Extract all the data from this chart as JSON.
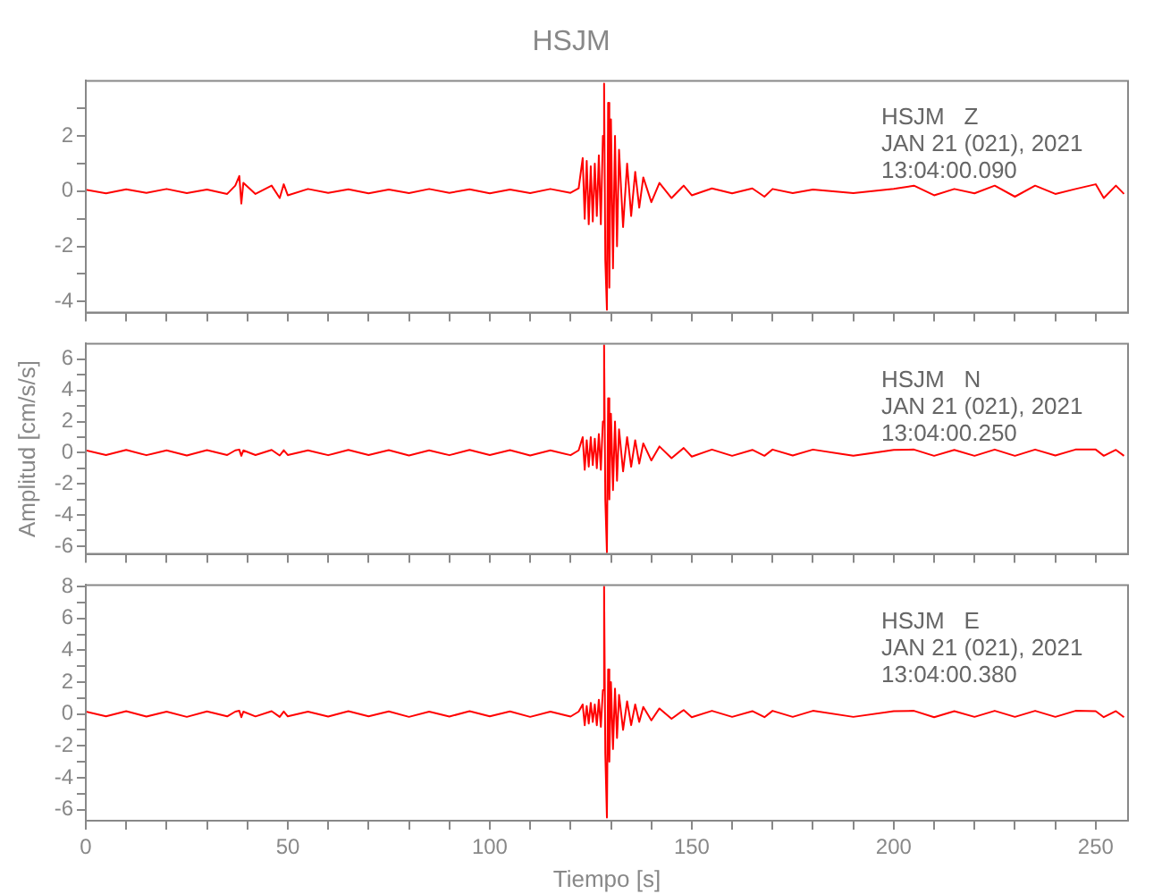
{
  "chart_data": [
    {
      "type": "line",
      "title": "HSJM",
      "annotations": [
        "HSJM   Z",
        "JAN 21 (021), 2021",
        "13:04:00.090"
      ],
      "x": [
        0,
        5,
        10,
        15,
        20,
        25,
        30,
        35,
        37,
        38,
        38.5,
        39,
        42,
        46,
        48,
        49,
        50,
        55,
        60,
        65,
        70,
        75,
        80,
        85,
        90,
        95,
        100,
        105,
        110,
        115,
        120,
        122,
        123,
        123.5,
        124,
        124.5,
        125,
        125.5,
        126,
        126.5,
        127,
        127.5,
        128,
        128.3,
        128.6,
        129,
        129.3,
        129.6,
        130,
        130.5,
        131,
        131.5,
        132,
        133,
        134,
        135,
        136,
        137,
        138,
        140,
        142,
        145,
        148,
        150,
        155,
        160,
        165,
        168,
        170,
        175,
        180,
        190,
        200,
        205,
        210,
        215,
        220,
        225,
        230,
        235,
        240,
        245,
        250,
        252,
        255,
        257
      ],
      "series": [
        {
          "color": "#ff0000",
          "values": [
            0.05,
            -0.08,
            0.07,
            -0.06,
            0.08,
            -0.07,
            0.06,
            -0.1,
            0.2,
            0.55,
            -0.45,
            0.3,
            -0.1,
            0.2,
            -0.25,
            0.25,
            -0.15,
            0.08,
            -0.06,
            0.07,
            -0.08,
            0.06,
            -0.07,
            0.08,
            -0.06,
            0.07,
            -0.08,
            0.06,
            -0.07,
            0.08,
            -0.06,
            0.1,
            1.2,
            -1.0,
            1.1,
            -1.2,
            0.9,
            -1.1,
            1.0,
            -0.9,
            1.3,
            -1.2,
            2.0,
            3.9,
            -2.5,
            -4.3,
            3.2,
            -3.5,
            2.6,
            -2.8,
            2.0,
            -2.0,
            1.5,
            -1.3,
            1.0,
            -0.9,
            0.7,
            -0.6,
            0.5,
            -0.4,
            0.3,
            -0.25,
            0.2,
            -0.15,
            0.1,
            -0.08,
            0.1,
            -0.2,
            0.08,
            -0.07,
            0.06,
            -0.07,
            0.08,
            0.2,
            -0.15,
            0.08,
            -0.08,
            0.2,
            -0.2,
            0.2,
            -0.1,
            0.08,
            0.25,
            -0.25,
            0.2,
            -0.1
          ]
        }
      ],
      "xlim": [
        0,
        258
      ],
      "xticks": [
        0,
        {
          "value": 10,
          "label": null
        },
        {
          "value": 20,
          "label": null
        },
        {
          "value": 30,
          "label": null
        },
        {
          "value": 40,
          "label": null
        },
        50,
        {
          "value": 60,
          "label": null
        },
        {
          "value": 70,
          "label": null
        },
        {
          "value": 80,
          "label": null
        },
        {
          "value": 90,
          "label": null
        },
        100,
        {
          "value": 110,
          "label": null
        },
        {
          "value": 120,
          "label": null
        },
        {
          "value": 130,
          "label": null
        },
        {
          "value": 140,
          "label": null
        },
        150,
        {
          "value": 160,
          "label": null
        },
        {
          "value": 170,
          "label": null
        },
        {
          "value": 180,
          "label": null
        },
        {
          "value": 190,
          "label": null
        },
        200,
        {
          "value": 210,
          "label": null
        },
        {
          "value": 220,
          "label": null
        },
        {
          "value": 230,
          "label": null
        },
        {
          "value": 240,
          "label": null
        },
        250
      ],
      "ylim": [
        -4.4,
        4
      ],
      "yticks": [
        -4,
        {
          "value": -3,
          "label": null
        },
        -2,
        {
          "value": -1,
          "label": null
        },
        0,
        {
          "value": 1,
          "label": null
        },
        2,
        {
          "value": 3,
          "label": null
        }
      ],
      "tick_labels": "y",
      "grid": false,
      "legend": false,
      "marker": "none",
      "line_style": "solid"
    },
    {
      "type": "line",
      "ylabel": "Amplitud [cm/s/s]",
      "annotations": [
        "HSJM   N",
        "JAN 21 (021), 2021",
        "13:04:00.250"
      ],
      "x": [
        0,
        5,
        10,
        15,
        20,
        25,
        30,
        35,
        37,
        38,
        38.5,
        39,
        42,
        46,
        48,
        49,
        50,
        55,
        60,
        65,
        70,
        75,
        80,
        85,
        90,
        95,
        100,
        105,
        110,
        115,
        120,
        122,
        123,
        123.5,
        124,
        124.5,
        125,
        125.5,
        126,
        126.5,
        127,
        127.5,
        128,
        128.3,
        128.6,
        129,
        129.3,
        129.6,
        130,
        130.5,
        131,
        131.5,
        132,
        133,
        134,
        135,
        136,
        137,
        138,
        140,
        142,
        145,
        148,
        150,
        155,
        160,
        165,
        168,
        170,
        175,
        180,
        190,
        200,
        205,
        210,
        215,
        220,
        225,
        230,
        235,
        240,
        245,
        250,
        252,
        255,
        257
      ],
      "series": [
        {
          "color": "#ff0000",
          "values": [
            0.15,
            -0.15,
            0.18,
            -0.16,
            0.15,
            -0.18,
            0.16,
            -0.15,
            0.15,
            0.2,
            -0.2,
            0.15,
            -0.15,
            0.18,
            -0.18,
            0.16,
            -0.15,
            0.15,
            -0.16,
            0.18,
            -0.15,
            0.16,
            -0.18,
            0.15,
            -0.16,
            0.18,
            -0.15,
            0.16,
            -0.18,
            0.15,
            -0.16,
            0.15,
            1.0,
            -1.1,
            0.8,
            -0.9,
            1.0,
            -0.8,
            0.9,
            -1.0,
            1.2,
            -1.1,
            2.0,
            6.9,
            -3.0,
            -6.4,
            3.5,
            -3.0,
            2.5,
            -2.4,
            2.0,
            -1.8,
            1.5,
            -1.2,
            1.0,
            -0.9,
            0.8,
            -0.7,
            0.6,
            -0.5,
            0.4,
            -0.35,
            0.3,
            -0.25,
            0.2,
            -0.2,
            0.18,
            -0.2,
            0.2,
            -0.18,
            0.2,
            -0.2,
            0.18,
            0.2,
            -0.2,
            0.18,
            -0.2,
            0.2,
            -0.2,
            0.2,
            -0.18,
            0.2,
            0.2,
            -0.2,
            0.18,
            -0.2
          ]
        }
      ],
      "xlim": [
        0,
        258
      ],
      "xticks": [
        0,
        {
          "value": 10,
          "label": null
        },
        {
          "value": 20,
          "label": null
        },
        {
          "value": 30,
          "label": null
        },
        {
          "value": 40,
          "label": null
        },
        50,
        {
          "value": 60,
          "label": null
        },
        {
          "value": 70,
          "label": null
        },
        {
          "value": 80,
          "label": null
        },
        {
          "value": 90,
          "label": null
        },
        100,
        {
          "value": 110,
          "label": null
        },
        {
          "value": 120,
          "label": null
        },
        {
          "value": 130,
          "label": null
        },
        {
          "value": 140,
          "label": null
        },
        150,
        {
          "value": 160,
          "label": null
        },
        {
          "value": 170,
          "label": null
        },
        {
          "value": 180,
          "label": null
        },
        {
          "value": 190,
          "label": null
        },
        200,
        {
          "value": 210,
          "label": null
        },
        {
          "value": 220,
          "label": null
        },
        {
          "value": 230,
          "label": null
        },
        {
          "value": 240,
          "label": null
        },
        250
      ],
      "ylim": [
        -6.5,
        7
      ],
      "yticks": [
        -6,
        {
          "value": -5,
          "label": null
        },
        -4,
        {
          "value": -3,
          "label": null
        },
        -2,
        {
          "value": -1,
          "label": null
        },
        0,
        {
          "value": 1,
          "label": null
        },
        2,
        {
          "value": 3,
          "label": null
        },
        4,
        {
          "value": 5,
          "label": null
        },
        6
      ],
      "tick_labels": "y",
      "grid": false,
      "legend": false,
      "marker": "none",
      "line_style": "solid"
    },
    {
      "type": "line",
      "xlabel": "Tiempo [s]",
      "annotations": [
        "HSJM   E",
        "JAN 21 (021), 2021",
        "13:04:00.380"
      ],
      "x": [
        0,
        5,
        10,
        15,
        20,
        25,
        30,
        35,
        37,
        38,
        38.5,
        39,
        42,
        46,
        48,
        49,
        50,
        55,
        60,
        65,
        70,
        75,
        80,
        85,
        90,
        95,
        100,
        105,
        110,
        115,
        120,
        122,
        123,
        123.5,
        124,
        124.5,
        125,
        125.5,
        126,
        126.5,
        127,
        127.5,
        128,
        128.3,
        128.6,
        129,
        129.3,
        129.6,
        130,
        130.5,
        131,
        131.5,
        132,
        133,
        134,
        135,
        136,
        137,
        138,
        140,
        142,
        145,
        148,
        150,
        155,
        160,
        165,
        168,
        170,
        175,
        180,
        190,
        200,
        205,
        210,
        215,
        220,
        225,
        230,
        235,
        240,
        245,
        250,
        252,
        255,
        257
      ],
      "series": [
        {
          "color": "#ff0000",
          "values": [
            0.15,
            -0.15,
            0.18,
            -0.16,
            0.15,
            -0.18,
            0.16,
            -0.15,
            0.15,
            0.2,
            -0.2,
            0.15,
            -0.15,
            0.18,
            -0.18,
            0.16,
            -0.15,
            0.15,
            -0.16,
            0.18,
            -0.15,
            0.16,
            -0.18,
            0.15,
            -0.16,
            0.18,
            -0.15,
            0.16,
            -0.18,
            0.15,
            -0.16,
            0.15,
            0.6,
            -0.7,
            0.5,
            -0.6,
            0.7,
            -0.5,
            0.6,
            -0.7,
            0.9,
            -0.8,
            1.5,
            8.0,
            -2.5,
            -6.5,
            2.8,
            -3.0,
            2.0,
            -2.2,
            1.6,
            -1.5,
            1.2,
            -1.0,
            0.8,
            -0.7,
            0.6,
            -0.5,
            0.45,
            -0.4,
            0.35,
            -0.3,
            0.25,
            -0.2,
            0.2,
            -0.18,
            0.18,
            -0.2,
            0.2,
            -0.18,
            0.2,
            -0.18,
            0.18,
            0.2,
            -0.2,
            0.18,
            -0.18,
            0.2,
            -0.18,
            0.2,
            -0.18,
            0.2,
            0.18,
            -0.2,
            0.18,
            -0.2
          ]
        }
      ],
      "xlim": [
        0,
        258
      ],
      "xticks": [
        0,
        {
          "value": 10,
          "label": null
        },
        {
          "value": 20,
          "label": null
        },
        {
          "value": 30,
          "label": null
        },
        {
          "value": 40,
          "label": null
        },
        50,
        {
          "value": 60,
          "label": null
        },
        {
          "value": 70,
          "label": null
        },
        {
          "value": 80,
          "label": null
        },
        {
          "value": 90,
          "label": null
        },
        100,
        {
          "value": 110,
          "label": null
        },
        {
          "value": 120,
          "label": null
        },
        {
          "value": 130,
          "label": null
        },
        {
          "value": 140,
          "label": null
        },
        150,
        {
          "value": 160,
          "label": null
        },
        {
          "value": 170,
          "label": null
        },
        {
          "value": 180,
          "label": null
        },
        {
          "value": 190,
          "label": null
        },
        200,
        {
          "value": 210,
          "label": null
        },
        {
          "value": 220,
          "label": null
        },
        {
          "value": 230,
          "label": null
        },
        {
          "value": 240,
          "label": null
        },
        250
      ],
      "ylim": [
        -6.7,
        8.1
      ],
      "yticks": [
        -6,
        {
          "value": -5,
          "label": null
        },
        -4,
        {
          "value": -3,
          "label": null
        },
        -2,
        {
          "value": -1,
          "label": null
        },
        0,
        {
          "value": 1,
          "label": null
        },
        2,
        {
          "value": 3,
          "label": null
        },
        4,
        {
          "value": 5,
          "label": null
        },
        6,
        {
          "value": 7,
          "label": null
        },
        8
      ],
      "grid": false,
      "legend": false,
      "marker": "none",
      "line_style": "solid"
    }
  ]
}
